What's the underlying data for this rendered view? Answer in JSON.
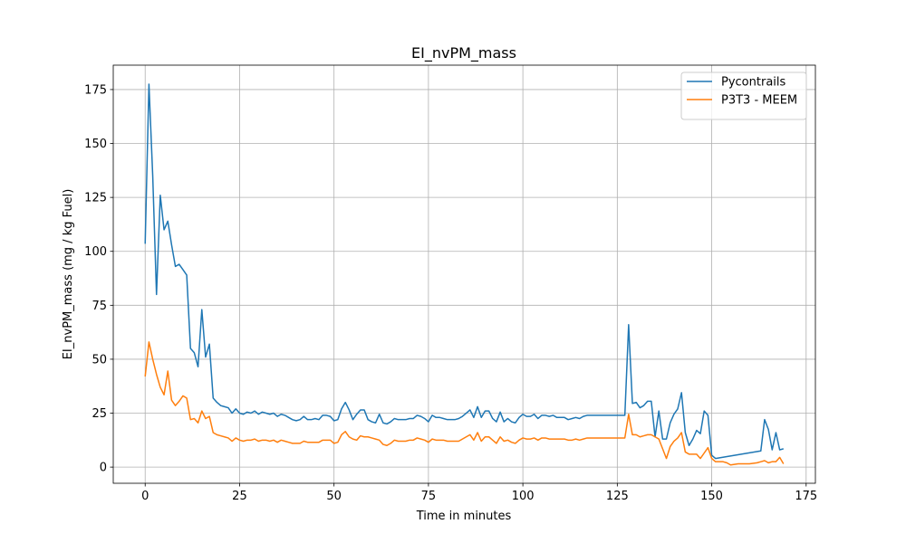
{
  "chart_data": {
    "type": "line",
    "title": "EI_nvPM_mass",
    "x_label": "Time in minutes",
    "y_label": "EI_nvPM_mass (mg / kg Fuel)",
    "xlim": [
      -8.45,
      177.45
    ],
    "ylim": [
      -7.5,
      186.3
    ],
    "xticks": [
      0,
      25,
      50,
      75,
      100,
      125,
      150,
      175
    ],
    "yticks": [
      0,
      25,
      50,
      75,
      100,
      125,
      150,
      175
    ],
    "grid": true,
    "legend": "upper-right",
    "series": [
      {
        "name": "Pycontrails",
        "color": "#1f77b4",
        "x": [
          0,
          1,
          2,
          3,
          4,
          5,
          6,
          7,
          8,
          9,
          10,
          11,
          12,
          13,
          14,
          15,
          16,
          17,
          18,
          19,
          20,
          21,
          22,
          23,
          24,
          25,
          26,
          27,
          28,
          29,
          30,
          31,
          32,
          33,
          34,
          35,
          36,
          37,
          38,
          39,
          40,
          41,
          42,
          43,
          44,
          45,
          46,
          47,
          48,
          49,
          50,
          51,
          52,
          53,
          54,
          55,
          56,
          57,
          58,
          59,
          60,
          61,
          62,
          63,
          64,
          65,
          66,
          67,
          68,
          69,
          70,
          71,
          72,
          73,
          74,
          75,
          76,
          77,
          78,
          79,
          80,
          81,
          82,
          83,
          84,
          85,
          86,
          87,
          88,
          89,
          90,
          91,
          92,
          93,
          94,
          95,
          96,
          97,
          98,
          99,
          100,
          101,
          102,
          103,
          104,
          105,
          106,
          107,
          108,
          109,
          110,
          111,
          112,
          113,
          114,
          115,
          116,
          117,
          118,
          127,
          128,
          129,
          130,
          131,
          132,
          133,
          134,
          135,
          136,
          137,
          138,
          139,
          140,
          141,
          142,
          143,
          144,
          145,
          146,
          147,
          148,
          149,
          150,
          151,
          163,
          164,
          165,
          166,
          167,
          168,
          169
        ],
        "values": [
          103.5,
          177.5,
          135,
          80,
          126,
          110,
          114,
          103,
          93,
          94,
          91.5,
          89,
          55,
          53,
          46.5,
          73,
          51,
          57,
          32,
          30,
          28.5,
          28,
          27.5,
          25,
          27,
          25,
          24.5,
          25.5,
          25,
          26,
          24.5,
          25.5,
          25,
          24.5,
          25,
          23.5,
          24.5,
          24,
          23,
          22,
          21.5,
          22,
          23.5,
          22,
          22,
          22.5,
          22,
          24,
          24,
          23.5,
          21.5,
          22,
          27,
          30,
          26.5,
          22,
          24.5,
          26.5,
          26.5,
          22,
          21,
          20.5,
          24.5,
          20.5,
          20,
          21,
          22.5,
          22,
          22,
          22,
          22.5,
          22.5,
          24,
          23.5,
          22.5,
          21,
          24,
          23,
          23,
          22.5,
          22,
          22,
          22,
          22.5,
          23.5,
          25,
          26.5,
          23,
          28,
          23,
          26,
          26,
          22.5,
          21,
          25.5,
          21,
          22.5,
          21,
          20.5,
          23,
          24.5,
          23.5,
          23.5,
          24.5,
          22.5,
          24,
          24,
          23.5,
          24,
          23,
          23,
          23,
          22,
          22.5,
          23,
          22.5,
          23.5,
          24,
          24,
          24,
          66,
          29.5,
          30,
          27.5,
          28.5,
          30.5,
          30.5,
          14,
          26,
          13,
          13,
          20.5,
          24.5,
          27,
          34.5,
          16,
          10,
          13,
          17,
          15.5,
          26,
          24,
          5.5,
          4,
          7.5,
          22,
          17.5,
          8,
          16,
          8,
          8.5
        ]
      },
      {
        "name": "P3T3 - MEEM",
        "color": "#ff7f0e",
        "x": [
          0,
          1,
          2,
          3,
          4,
          5,
          6,
          7,
          8,
          9,
          10,
          11,
          12,
          13,
          14,
          15,
          16,
          17,
          18,
          19,
          20,
          21,
          22,
          23,
          24,
          25,
          26,
          27,
          28,
          29,
          30,
          31,
          32,
          33,
          34,
          35,
          36,
          37,
          38,
          39,
          40,
          41,
          42,
          43,
          44,
          45,
          46,
          47,
          48,
          49,
          50,
          51,
          52,
          53,
          54,
          55,
          56,
          57,
          58,
          59,
          60,
          61,
          62,
          63,
          64,
          65,
          66,
          67,
          68,
          69,
          70,
          71,
          72,
          73,
          74,
          75,
          76,
          77,
          78,
          79,
          80,
          81,
          82,
          83,
          84,
          85,
          86,
          87,
          88,
          89,
          90,
          91,
          92,
          93,
          94,
          95,
          96,
          97,
          98,
          99,
          100,
          101,
          102,
          103,
          104,
          105,
          106,
          107,
          108,
          109,
          110,
          111,
          112,
          113,
          114,
          115,
          116,
          117,
          118,
          127,
          128,
          129,
          130,
          131,
          132,
          133,
          134,
          135,
          136,
          137,
          138,
          139,
          140,
          141,
          142,
          143,
          144,
          145,
          146,
          147,
          148,
          149,
          150,
          151,
          152,
          153,
          154,
          155,
          157,
          160,
          162,
          163,
          164,
          165,
          166,
          167,
          168,
          169
        ],
        "values": [
          42,
          58,
          50,
          43,
          37,
          33.5,
          44.5,
          31,
          28.5,
          30.5,
          33,
          32,
          22,
          22.5,
          20.5,
          26,
          22.5,
          23.5,
          16,
          15,
          14.5,
          14,
          13.5,
          12,
          13.5,
          12.5,
          12,
          12.5,
          12.5,
          13,
          12,
          12.5,
          12.5,
          12,
          12.5,
          11.5,
          12.5,
          12,
          11.5,
          11,
          11,
          11,
          12,
          11.5,
          11.5,
          11.5,
          11.5,
          12.5,
          12.5,
          12.5,
          11,
          11.5,
          15,
          16.5,
          14,
          13,
          12.5,
          14.5,
          14,
          14,
          13.5,
          13,
          12.5,
          10.5,
          10,
          11,
          12.5,
          12,
          12,
          12,
          12.5,
          12.5,
          13.5,
          13,
          12.5,
          11.5,
          13,
          12.5,
          12.5,
          12.5,
          12,
          12,
          12,
          12,
          13,
          14,
          15,
          12.5,
          16,
          12,
          14,
          14,
          12.5,
          11,
          14,
          12,
          12.5,
          11.5,
          11,
          12.5,
          13.5,
          13,
          13,
          13.5,
          12.5,
          13.5,
          13.5,
          13,
          13,
          13,
          13,
          13,
          12.5,
          12.5,
          13,
          12.5,
          13,
          13.5,
          13.5,
          13.5,
          24.5,
          15,
          15,
          14,
          14.5,
          15,
          15,
          14,
          13,
          8.5,
          4,
          9.5,
          12,
          13.5,
          16,
          7,
          6,
          6,
          6,
          4,
          6.5,
          9,
          4,
          2.5,
          2.5,
          2.5,
          2,
          1,
          1.5,
          1.5,
          2,
          2.5,
          3,
          2,
          2.5,
          2.5,
          4.5,
          1.5
        ]
      }
    ]
  }
}
